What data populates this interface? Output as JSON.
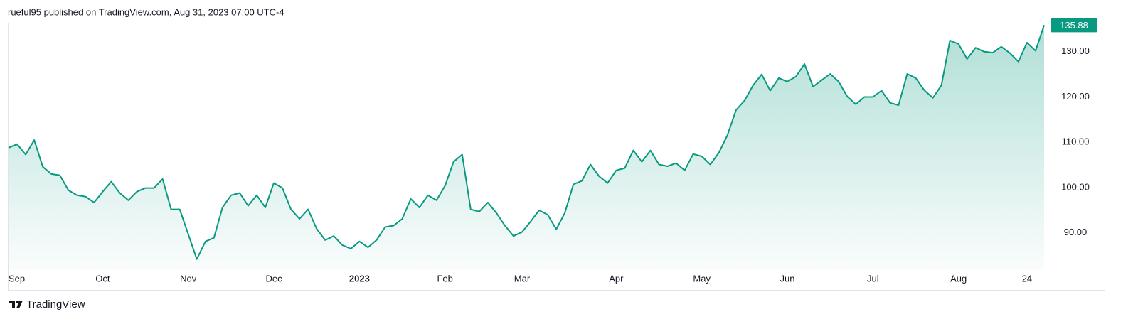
{
  "attribution": "rueful95 published on TradingView.com, Aug 31, 2023 07:00 UTC-4",
  "brand": "TradingView",
  "chart_data": {
    "type": "area",
    "color": "#089981",
    "grid": false,
    "ylim": [
      81.8,
      136.4
    ],
    "yticks": [
      {
        "value": 90,
        "label": "90.00"
      },
      {
        "value": 100,
        "label": "100.00"
      },
      {
        "value": 110,
        "label": "110.00"
      },
      {
        "value": 120,
        "label": "120.00"
      },
      {
        "value": 130,
        "label": "130.00"
      }
    ],
    "categories": [
      "Sep",
      null,
      null,
      null,
      null,
      null,
      null,
      null,
      null,
      null,
      null,
      "Oct",
      null,
      null,
      null,
      null,
      null,
      null,
      null,
      null,
      null,
      "Nov",
      null,
      null,
      null,
      null,
      null,
      null,
      null,
      null,
      null,
      "Dec",
      null,
      null,
      null,
      null,
      null,
      null,
      null,
      null,
      null,
      "2023",
      null,
      null,
      null,
      null,
      null,
      null,
      null,
      null,
      null,
      "Feb",
      null,
      null,
      null,
      null,
      null,
      null,
      null,
      null,
      "Mar",
      null,
      null,
      null,
      null,
      null,
      null,
      null,
      null,
      null,
      null,
      "Apr",
      null,
      null,
      null,
      null,
      null,
      null,
      null,
      null,
      null,
      "May",
      null,
      null,
      null,
      null,
      null,
      null,
      null,
      null,
      null,
      "Jun",
      null,
      null,
      null,
      null,
      null,
      null,
      null,
      null,
      null,
      "Jul",
      null,
      null,
      null,
      null,
      null,
      null,
      null,
      null,
      null,
      "Aug",
      null,
      null,
      null,
      null,
      null,
      null,
      null,
      "24",
      null,
      null
    ],
    "values": [
      108.8,
      109.6,
      107.3,
      110.5,
      104.6,
      103.0,
      102.7,
      99.4,
      98.3,
      98.0,
      96.7,
      99.1,
      101.3,
      98.8,
      97.2,
      99.1,
      99.9,
      99.9,
      101.9,
      95.2,
      95.2,
      89.7,
      84.2,
      88.1,
      88.9,
      95.6,
      98.3,
      98.8,
      96.0,
      98.3,
      95.6,
      101.0,
      99.9,
      95.2,
      93.1,
      95.2,
      90.9,
      88.4,
      89.3,
      87.3,
      86.5,
      88.1,
      86.8,
      88.4,
      91.3,
      91.6,
      93.1,
      97.5,
      95.6,
      98.3,
      97.2,
      100.4,
      105.7,
      107.3,
      95.2,
      94.7,
      96.7,
      94.4,
      91.6,
      89.3,
      90.2,
      92.5,
      95.0,
      94.0,
      90.8,
      94.4,
      100.7,
      101.5,
      105.1,
      102.5,
      101.0,
      103.8,
      104.3,
      108.2,
      105.7,
      108.2,
      105.1,
      104.7,
      105.4,
      103.8,
      107.4,
      106.9,
      105.1,
      107.7,
      111.6,
      117.1,
      119.2,
      122.6,
      125.0,
      121.4,
      124.2,
      123.4,
      124.5,
      127.3,
      122.3,
      123.7,
      125.1,
      123.4,
      120.1,
      118.4,
      120.0,
      120.0,
      121.4,
      118.7,
      118.2,
      125.1,
      124.2,
      121.5,
      119.8,
      122.6,
      132.5,
      131.7,
      128.4,
      130.9,
      130.0,
      129.8,
      131.1,
      129.7,
      127.8,
      132.0,
      130.2,
      135.88
    ]
  }
}
